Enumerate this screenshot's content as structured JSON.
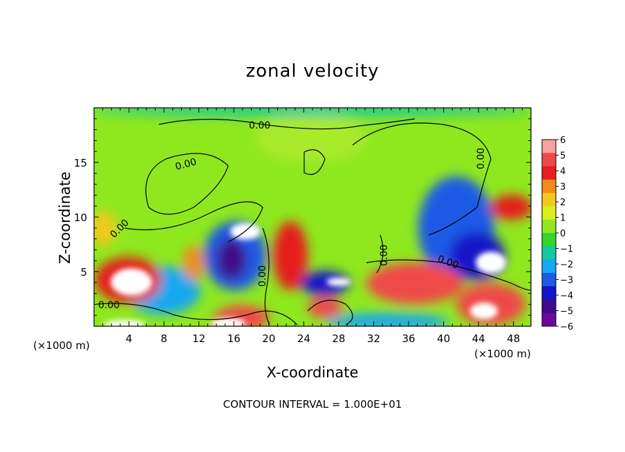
{
  "chart_data": {
    "type": "heatmap",
    "title": "zonal velocity",
    "xlabel": "X-coordinate",
    "ylabel": "Z-coordinate",
    "x_unit": "(×1000 m)",
    "y_unit": "(×1000 m)",
    "xlim": [
      0,
      50
    ],
    "ylim": [
      0,
      20
    ],
    "x_ticks": [
      4,
      8,
      12,
      16,
      20,
      24,
      28,
      32,
      36,
      40,
      44,
      48
    ],
    "y_ticks": [
      5,
      10,
      15
    ],
    "colorbar": {
      "levels": [
        6,
        5,
        4,
        3,
        2,
        1,
        0,
        -1,
        -2,
        -3,
        -4,
        -5,
        -6
      ],
      "colors": [
        "#f7a0a0",
        "#f04848",
        "#e61e1e",
        "#f08a1a",
        "#f5c81e",
        "#d9ef1c",
        "#8fe81e",
        "#33d62c",
        "#16c8a0",
        "#16a8f0",
        "#1e5ae6",
        "#1414c8",
        "#3c0a8c",
        "#6a0a9c"
      ]
    },
    "contour_labels": [
      "0.00",
      "0.00",
      "0.00",
      "0.00",
      "0.00",
      "0.00",
      "0.00",
      "0.00"
    ],
    "footer": "CONTOUR INTERVAL = 1.000E+01"
  }
}
